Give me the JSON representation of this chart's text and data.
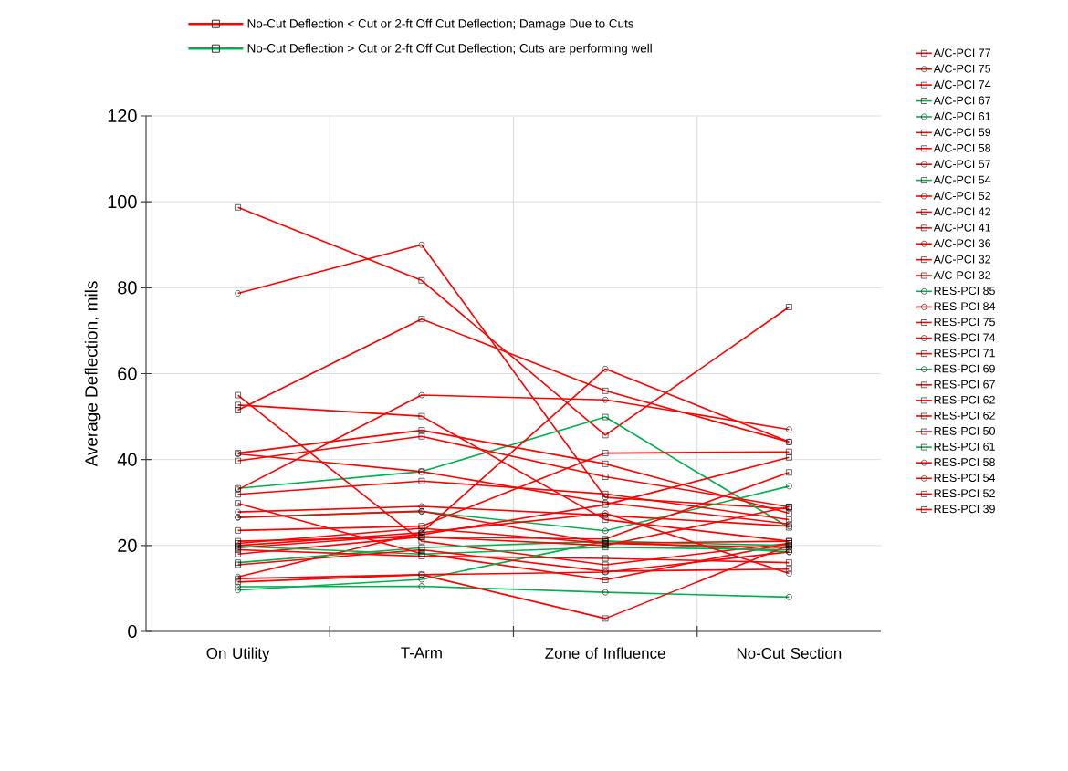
{
  "chart_data": {
    "type": "line",
    "categories": [
      "On Utility",
      "T-Arm",
      "Zone of Influence",
      "No-Cut Section"
    ],
    "ylabel": "Average Deflection, mils",
    "ylim": [
      0,
      120
    ],
    "yticks": [
      0,
      20,
      40,
      60,
      80,
      100,
      120
    ],
    "grid": true,
    "legend": "right",
    "annotations": [
      "No-Cut Deflection < Cut or 2-ft Off Cut Deflection; Damage Due to Cuts",
      "No-Cut Deflection > Cut or 2-ft Off Cut Deflection; Cuts are performing well"
    ],
    "series": [
      {
        "name": "A/C-PCI 77",
        "color": "#ff0000",
        "marker": "square",
        "values": [
          98.7,
          81.7,
          45.7,
          75.5
        ]
      },
      {
        "name": "A/C-PCI 75",
        "color": "#ff0000",
        "marker": "circle",
        "values": [
          78.7,
          90.0,
          31.2,
          28.5
        ]
      },
      {
        "name": "A/C-PCI 74",
        "color": "#ff0000",
        "marker": "square",
        "values": [
          51.5,
          72.7,
          56.0,
          44.1
        ]
      },
      {
        "name": "A/C-PCI 67",
        "color": "#00b050",
        "marker": "square",
        "values": [
          33.3,
          37.2,
          49.9,
          24.2
        ]
      },
      {
        "name": "A/C-PCI 61",
        "color": "#00b050",
        "marker": "circle",
        "values": [
          26.6,
          27.9,
          23.4,
          33.8
        ]
      },
      {
        "name": "A/C-PCI 59",
        "color": "#ff0000",
        "marker": "square",
        "values": [
          55.0,
          21.0,
          15.5,
          20.5
        ]
      },
      {
        "name": "A/C-PCI 58",
        "color": "#ff0000",
        "marker": "square",
        "values": [
          52.7,
          50.1,
          26.0,
          21.0
        ]
      },
      {
        "name": "A/C-PCI 57",
        "color": "#ff0000",
        "marker": "circle",
        "values": [
          12.7,
          23.0,
          61.1,
          44.1
        ]
      },
      {
        "name": "A/C-PCI 54",
        "color": "#00b050",
        "marker": "square",
        "values": [
          16.0,
          19.5,
          21.0,
          20.0
        ]
      },
      {
        "name": "A/C-PCI 52",
        "color": "#ff0000",
        "marker": "circle",
        "values": [
          41.3,
          37.2,
          30.0,
          25.0
        ]
      },
      {
        "name": "A/C-PCI 42",
        "color": "#ff0000",
        "marker": "square",
        "values": [
          41.5,
          46.8,
          39.0,
          27.5
        ]
      },
      {
        "name": "A/C-PCI 41",
        "color": "#ff0000",
        "marker": "square",
        "values": [
          39.7,
          45.4,
          36.0,
          29.0
        ]
      },
      {
        "name": "A/C-PCI 36",
        "color": "#ff0000",
        "marker": "circle",
        "values": [
          27.8,
          29.1,
          27.0,
          24.5
        ]
      },
      {
        "name": "A/C-PCI 32",
        "color": "#ff0000",
        "marker": "square",
        "values": [
          31.9,
          35.0,
          32.0,
          26.0
        ]
      },
      {
        "name": "A/C-PCI 32",
        "color": "#ff0000",
        "marker": "square",
        "values": [
          29.8,
          18.1,
          12.0,
          20.5
        ]
      },
      {
        "name": "RES-PCI 85",
        "color": "#00b050",
        "marker": "circle",
        "values": [
          9.6,
          12.1,
          21.0,
          18.5
        ]
      },
      {
        "name": "RES-PCI 84",
        "color": "#ff0000",
        "marker": "circle",
        "values": [
          12.3,
          13.2,
          13.8,
          18.5
        ]
      },
      {
        "name": "RES-PCI 75",
        "color": "#ff0000",
        "marker": "square",
        "values": [
          23.5,
          24.5,
          41.5,
          41.8
        ]
      },
      {
        "name": "RES-PCI 74",
        "color": "#ff0000",
        "marker": "circle",
        "values": [
          33.0,
          55.0,
          53.9,
          47.0
        ]
      },
      {
        "name": "RES-PCI 71",
        "color": "#ff0000",
        "marker": "square",
        "values": [
          19.5,
          22.5,
          29.5,
          40.5
        ]
      },
      {
        "name": "RES-PCI 69",
        "color": "#00b050",
        "marker": "circle",
        "values": [
          10.4,
          10.5,
          9.1,
          8.0
        ]
      },
      {
        "name": "RES-PCI 67",
        "color": "#ff0000",
        "marker": "square",
        "values": [
          21.0,
          22.0,
          21.5,
          37.0
        ]
      },
      {
        "name": "RES-PCI 62",
        "color": "#ff0000",
        "marker": "square",
        "values": [
          20.5,
          24.0,
          20.5,
          21.0
        ]
      },
      {
        "name": "RES-PCI 62",
        "color": "#ff0000",
        "marker": "square",
        "values": [
          18.0,
          22.0,
          20.0,
          29.0
        ]
      },
      {
        "name": "RES-PCI 50",
        "color": "#ff0000",
        "marker": "square",
        "values": [
          11.5,
          13.2,
          3.0,
          20.0
        ]
      },
      {
        "name": "RES-PCI 61",
        "color": "#00b050",
        "marker": "square",
        "values": [
          19.8,
          18.0,
          19.6,
          19.0
        ]
      },
      {
        "name": "RES-PCI 58",
        "color": "#ff0000",
        "marker": "circle",
        "values": [
          20.0,
          23.0,
          27.5,
          13.5
        ]
      },
      {
        "name": "RES-PCI 54",
        "color": "#ff0000",
        "marker": "circle",
        "values": [
          26.5,
          28.0,
          20.5,
          19.5
        ]
      },
      {
        "name": "RES-PCI 52",
        "color": "#ff0000",
        "marker": "square",
        "values": [
          19.0,
          17.5,
          17.0,
          16.0
        ]
      },
      {
        "name": "RES-PCI 39",
        "color": "#ff0000",
        "marker": "square",
        "values": [
          15.5,
          19.0,
          14.0,
          14.5
        ]
      }
    ]
  }
}
